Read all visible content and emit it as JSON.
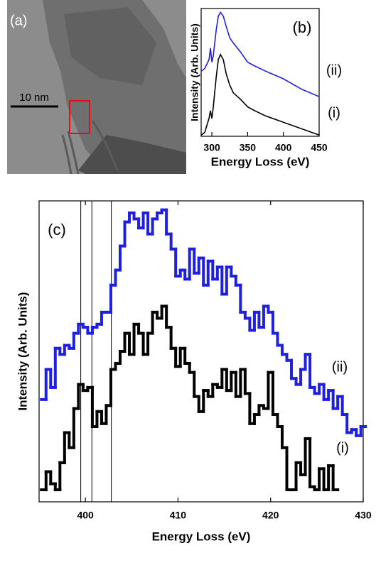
{
  "image_panel": {
    "label": "(a)",
    "scale_bar": "10 nm"
  },
  "chart_data": [
    {
      "type": "line",
      "label": "(b)",
      "xlabel": "Energy Loss (eV)",
      "ylabel": "Intensity (Arb. Units)",
      "xlim": [
        285,
        450
      ],
      "xticks": [
        300,
        350,
        400,
        450
      ],
      "ylim": [
        0,
        100
      ],
      "mirror_ticks": false,
      "series": [
        {
          "name": "(ii)",
          "color": "#1f1fe0",
          "x": [
            285,
            290,
            296,
            298,
            300,
            302,
            306,
            309,
            312,
            316,
            320,
            325,
            330,
            340,
            350,
            360,
            375,
            400,
            425,
            450
          ],
          "values": [
            51,
            53,
            60,
            69,
            58,
            63,
            83,
            94,
            97,
            94,
            86,
            77,
            73,
            66,
            58,
            55,
            51,
            45,
            37,
            31
          ]
        },
        {
          "name": "(i)",
          "color": "#000000",
          "x": [
            285,
            290,
            296,
            298,
            300,
            302,
            306,
            309,
            312,
            316,
            320,
            325,
            330,
            340,
            350,
            360,
            375,
            400,
            425,
            450
          ],
          "values": [
            1,
            3,
            14,
            20,
            14,
            23,
            46,
            60,
            64,
            60,
            49,
            40,
            34,
            29,
            23,
            20,
            16,
            11,
            6,
            1
          ]
        }
      ]
    },
    {
      "type": "step",
      "label": "(c)",
      "xlabel": "Energy Loss (eV)",
      "ylabel": "Intensity (Arb. Units)",
      "xlim": [
        395,
        430
      ],
      "xticks": [
        400,
        410,
        420,
        430
      ],
      "ylim": [
        0,
        100
      ],
      "mirror_ticks": true,
      "vlines": [
        399.5,
        400.7,
        402.8
      ],
      "series": [
        {
          "name": "(ii)",
          "color": "#1f1fe0",
          "x": [
            395.5,
            396,
            396.5,
            397,
            397.5,
            398,
            398.5,
            399,
            399.5,
            400,
            400.5,
            401,
            401.5,
            402,
            402.5,
            403,
            403.5,
            404,
            404.5,
            405,
            405.5,
            406,
            406.5,
            407,
            407.5,
            408,
            408.5,
            409,
            409.5,
            410,
            410.5,
            411,
            411.5,
            412,
            412.5,
            413,
            413.5,
            414,
            414.5,
            415,
            415.5,
            416,
            416.5,
            417,
            417.5,
            418,
            418.5,
            419,
            419.5,
            420,
            420.5,
            421,
            421.5,
            422,
            422.5,
            423,
            423.5,
            424,
            424.5,
            425,
            425.5,
            426,
            426.5,
            427,
            427.5,
            428,
            428.5,
            429,
            429.5,
            430
          ],
          "values": [
            34,
            44,
            38,
            51,
            49,
            52,
            51,
            56,
            59,
            58,
            56,
            58,
            59,
            63,
            63,
            72,
            77,
            85,
            93,
            96,
            94,
            91,
            96,
            89,
            94,
            96,
            97,
            89,
            84,
            75,
            77,
            74,
            84,
            76,
            81,
            72,
            80,
            74,
            78,
            69,
            78,
            75,
            72,
            63,
            61,
            57,
            63,
            58,
            65,
            63,
            56,
            52,
            49,
            47,
            41,
            39,
            44,
            49,
            38,
            36,
            39,
            34,
            37,
            31,
            35,
            29,
            23,
            24,
            22,
            25
          ]
        },
        {
          "name": "(i)",
          "color": "#000000",
          "x": [
            395.5,
            396,
            396.5,
            397,
            397.5,
            398,
            398.5,
            399,
            399.5,
            400,
            400.5,
            401,
            401.5,
            402,
            402.5,
            403,
            403.5,
            404,
            404.5,
            405,
            405.5,
            406,
            406.5,
            407,
            407.5,
            408,
            408.5,
            409,
            409.5,
            410,
            410.5,
            411,
            411.5,
            412,
            412.5,
            413,
            413.5,
            414,
            414.5,
            415,
            415.5,
            416,
            416.5,
            417,
            417.5,
            418,
            418.5,
            419,
            419.5,
            420,
            420.5,
            421,
            421.5,
            422,
            422.5,
            423,
            423.5,
            424,
            424.5,
            425,
            425.5,
            426,
            426.5,
            427
          ],
          "values": [
            4,
            10,
            6,
            4,
            13,
            23,
            18,
            31,
            39,
            37,
            38,
            25,
            30,
            26,
            32,
            44,
            46,
            50,
            56,
            49,
            59,
            56,
            49,
            56,
            63,
            61,
            65,
            58,
            51,
            45,
            51,
            46,
            43,
            35,
            30,
            37,
            35,
            39,
            38,
            44,
            37,
            43,
            35,
            44,
            36,
            26,
            29,
            32,
            31,
            43,
            29,
            25,
            18,
            4,
            4,
            13,
            9,
            21,
            5,
            4,
            11,
            4,
            12,
            4
          ]
        }
      ]
    }
  ]
}
